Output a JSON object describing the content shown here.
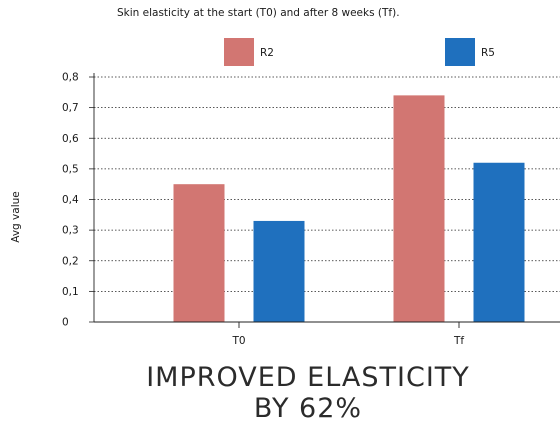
{
  "chart_data": {
    "type": "bar",
    "title": "Skin elasticity at the start (T0) and after 8 weeks (Tf).",
    "ylabel": "Avg value",
    "xlabel": "",
    "categories": [
      "T0",
      "Tf"
    ],
    "series": [
      {
        "name": "R2",
        "color": "#d27672",
        "values": [
          0.45,
          0.74
        ]
      },
      {
        "name": "R5",
        "color": "#1f70be",
        "values": [
          0.33,
          0.52
        ]
      }
    ],
    "ylim": [
      0,
      0.8
    ],
    "yticks": [
      "0",
      "0,1",
      "0,2",
      "0,3",
      "0,4",
      "0,5",
      "0,6",
      "0,7",
      "0,8"
    ],
    "grid": "dotted-horizontal",
    "legend": "top"
  },
  "headline": {
    "line1": "IMPROVED ELASTICITY",
    "line2": "BY 62%"
  }
}
